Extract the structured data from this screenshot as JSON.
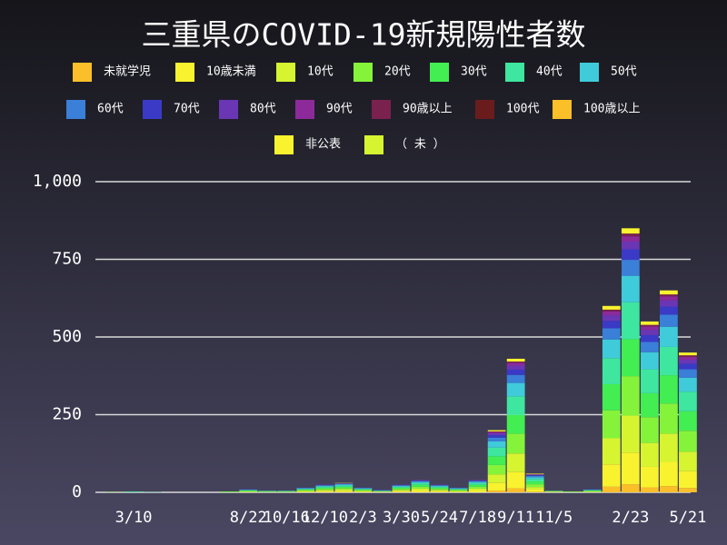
{
  "chart_data": {
    "type": "stacked_bar",
    "title": "三重県のCOVID-19新規陽性者数",
    "categories": [
      null,
      null,
      "3/10",
      null,
      null,
      null,
      null,
      null,
      "8/22",
      null,
      "10/16",
      null,
      "12/10",
      null,
      "2/3",
      null,
      "3/30",
      null,
      "5/24",
      null,
      "7/18",
      null,
      "9/11",
      null,
      "11/5",
      null,
      null,
      null,
      "2/23",
      null,
      null,
      "5/21"
    ],
    "ylim": [
      0,
      1000
    ],
    "yticks": [
      0,
      250,
      500,
      750,
      {
        "value": 1000,
        "label": "1,000"
      }
    ],
    "grid": true,
    "legend": "top",
    "series": [
      {
        "name": "未就学児",
        "color": "#fbbf2a",
        "values": [
          0,
          0,
          0,
          0,
          0,
          0,
          0,
          0,
          0,
          0,
          0,
          0,
          1,
          1,
          0,
          0,
          1,
          1,
          1,
          0,
          1,
          6,
          13,
          2,
          0,
          0,
          0,
          18,
          26,
          16,
          20,
          14
        ]
      },
      {
        "name": "10歳未満",
        "color": "#f9f22e",
        "values": [
          0,
          0,
          0,
          0,
          0,
          0,
          0,
          0,
          1,
          0,
          0,
          2,
          3,
          4,
          2,
          1,
          3,
          5,
          3,
          2,
          5,
          24,
          52,
          7,
          1,
          0,
          1,
          72,
          102,
          66,
          78,
          54
        ]
      },
      {
        "name": "10代",
        "color": "#d7f431",
        "values": [
          0,
          0,
          0,
          0,
          0,
          0,
          0,
          0,
          1,
          1,
          1,
          2,
          3,
          4,
          2,
          1,
          3,
          6,
          3,
          2,
          6,
          28,
          60,
          8,
          1,
          1,
          1,
          84,
          119,
          77,
          91,
          63
        ]
      },
      {
        "name": "20代",
        "color": "#86f33b",
        "values": [
          0,
          1,
          0,
          1,
          0,
          0,
          0,
          2,
          2,
          1,
          1,
          3,
          4,
          5,
          3,
          1,
          4,
          6,
          4,
          3,
          6,
          30,
          64,
          9,
          1,
          1,
          2,
          90,
          127,
          83,
          97,
          67
        ]
      },
      {
        "name": "30代",
        "color": "#42ee52",
        "values": [
          0,
          0,
          1,
          0,
          0,
          0,
          0,
          1,
          2,
          1,
          1,
          2,
          4,
          4,
          2,
          1,
          4,
          6,
          4,
          2,
          6,
          28,
          60,
          9,
          1,
          1,
          2,
          84,
          119,
          77,
          91,
          63
        ]
      },
      {
        "name": "40代",
        "color": "#3ee6a0",
        "values": [
          0,
          0,
          1,
          0,
          0,
          0,
          0,
          0,
          1,
          1,
          1,
          2,
          3,
          4,
          2,
          1,
          3,
          6,
          3,
          2,
          6,
          28,
          60,
          8,
          1,
          0,
          1,
          84,
          119,
          77,
          91,
          63
        ]
      },
      {
        "name": "50代",
        "color": "#3fcbd9",
        "values": [
          0,
          0,
          1,
          0,
          0,
          0,
          0,
          0,
          1,
          1,
          1,
          2,
          3,
          3,
          2,
          1,
          3,
          4,
          3,
          2,
          4,
          20,
          43,
          6,
          0,
          0,
          1,
          60,
          85,
          55,
          65,
          45
        ]
      },
      {
        "name": "60代",
        "color": "#3a7fd8",
        "values": [
          0,
          0,
          0,
          1,
          0,
          0,
          0,
          0,
          1,
          0,
          0,
          1,
          2,
          2,
          1,
          1,
          2,
          2,
          2,
          1,
          2,
          12,
          26,
          4,
          0,
          0,
          1,
          36,
          51,
          33,
          39,
          27
        ]
      },
      {
        "name": "70代",
        "color": "#3a3ac6",
        "values": [
          0,
          0,
          0,
          0,
          0,
          0,
          0,
          0,
          1,
          0,
          0,
          1,
          1,
          1,
          1,
          1,
          1,
          2,
          1,
          1,
          2,
          8,
          17,
          2,
          0,
          0,
          1,
          24,
          34,
          22,
          26,
          18
        ]
      },
      {
        "name": "80代",
        "color": "#6a36b4",
        "values": [
          0,
          0,
          0,
          0,
          0,
          0,
          0,
          0,
          0,
          0,
          0,
          0,
          1,
          1,
          0,
          0,
          1,
          1,
          1,
          0,
          1,
          6,
          13,
          2,
          0,
          0,
          0,
          18,
          25,
          17,
          20,
          13
        ]
      },
      {
        "name": "90代",
        "color": "#8c2a9a",
        "values": [
          0,
          0,
          0,
          0,
          0,
          0,
          0,
          0,
          0,
          0,
          0,
          0,
          0,
          0,
          0,
          0,
          0,
          1,
          0,
          0,
          1,
          4,
          9,
          1,
          0,
          0,
          0,
          12,
          17,
          11,
          13,
          9
        ]
      },
      {
        "name": "90歳以上",
        "color": "#7a2150",
        "values": [
          0,
          0,
          0,
          0,
          0,
          0,
          0,
          0,
          0,
          0,
          0,
          0,
          0,
          0,
          0,
          0,
          0,
          0,
          0,
          0,
          0,
          2,
          4,
          0,
          0,
          0,
          0,
          6,
          9,
          5,
          6,
          5
        ]
      },
      {
        "name": "100代",
        "color": "#6a1c1c",
        "values": [
          0,
          0,
          0,
          0,
          0,
          0,
          0,
          0,
          0,
          0,
          0,
          0,
          0,
          0,
          0,
          0,
          0,
          0,
          0,
          0,
          0,
          0,
          0,
          0,
          0,
          0,
          0,
          0,
          0,
          0,
          0,
          0
        ]
      },
      {
        "name": "100歳以上",
        "color": "#fbbf2a",
        "values": [
          0,
          0,
          0,
          0,
          0,
          0,
          0,
          0,
          0,
          0,
          0,
          0,
          0,
          0,
          0,
          0,
          0,
          0,
          0,
          0,
          0,
          0,
          0,
          0,
          0,
          0,
          0,
          0,
          0,
          0,
          0,
          0
        ]
      },
      {
        "name": "非公表",
        "color": "#f9f22e",
        "values": [
          0,
          0,
          0,
          0,
          0,
          0,
          0,
          0,
          0,
          0,
          0,
          0,
          0,
          1,
          0,
          0,
          0,
          0,
          0,
          0,
          0,
          4,
          9,
          2,
          0,
          0,
          0,
          12,
          17,
          11,
          13,
          9
        ]
      },
      {
        "name": "（ 未 ）",
        "color": "#d7f431",
        "values": [
          0,
          0,
          0,
          0,
          0,
          0,
          0,
          0,
          0,
          0,
          0,
          0,
          0,
          0,
          0,
          0,
          0,
          0,
          0,
          0,
          0,
          0,
          0,
          0,
          0,
          0,
          0,
          0,
          0,
          0,
          0,
          0
        ]
      }
    ]
  }
}
